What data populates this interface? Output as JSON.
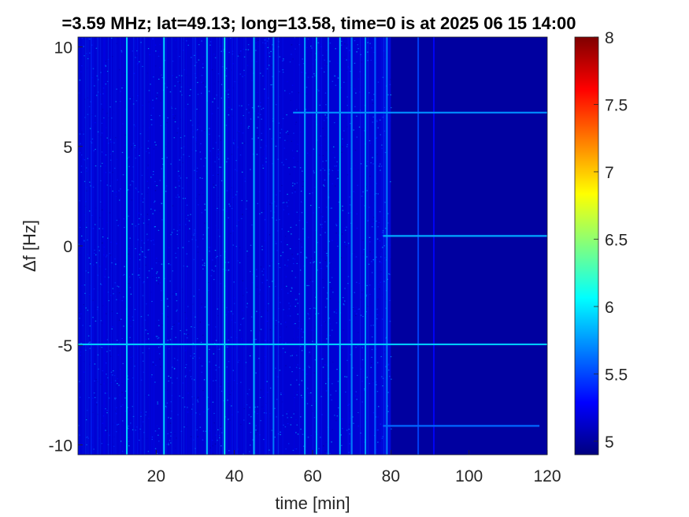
{
  "chart_data": {
    "type": "heatmap",
    "title": "=3.59 MHz;  lat=49.13; long=13.58, time=0 is at 2025 06 15 14:00",
    "xlabel": "time [min]",
    "ylabel": "Δf [Hz]",
    "xlim": [
      0,
      120
    ],
    "ylim": [
      -10.5,
      10.5
    ],
    "x_ticks": [
      20,
      40,
      60,
      80,
      100,
      120
    ],
    "x_tick_labels": [
      "20",
      "40",
      "60",
      "80",
      "100",
      "120"
    ],
    "y_ticks": [
      10,
      5,
      0,
      -5,
      -10
    ],
    "y_tick_labels": [
      "10",
      "5",
      "0",
      "-5",
      "-10"
    ],
    "colorbar": {
      "colormap": "jet",
      "clim": [
        4.9,
        8
      ],
      "ticks": [
        8,
        7.5,
        7,
        6.5,
        6,
        5.5,
        5
      ],
      "tick_labels": [
        "8",
        "7.5",
        "7",
        "6.5",
        "6",
        "5.5",
        "5"
      ]
    },
    "background_level": 5.0,
    "noisy_region_x": [
      0,
      80
    ],
    "noisy_region_level": 5.3,
    "horizontal_traces": [
      {
        "df": 6.7,
        "x_start": 55,
        "x_end": 120,
        "level": 5.7
      },
      {
        "df": 0.5,
        "x_start": 78,
        "x_end": 120,
        "level": 5.8
      },
      {
        "df": -4.95,
        "x_start": 0,
        "x_end": 120,
        "level": 5.9
      },
      {
        "df": -9.05,
        "x_start": 78,
        "x_end": 118,
        "level": 5.6
      }
    ],
    "vertical_streaks": [
      {
        "x": 12.5,
        "level": 6.0
      },
      {
        "x": 22.0,
        "level": 6.0
      },
      {
        "x": 33.0,
        "level": 5.9
      },
      {
        "x": 37.5,
        "level": 6.1
      },
      {
        "x": 45.0,
        "level": 5.9
      },
      {
        "x": 50.0,
        "level": 5.7
      },
      {
        "x": 58.0,
        "level": 5.8
      },
      {
        "x": 61.0,
        "level": 5.9
      },
      {
        "x": 64.0,
        "level": 5.7
      },
      {
        "x": 67.0,
        "level": 5.9
      },
      {
        "x": 70.0,
        "level": 5.7
      },
      {
        "x": 73.5,
        "level": 5.8
      },
      {
        "x": 76.0,
        "level": 5.6
      },
      {
        "x": 79.0,
        "level": 5.7
      },
      {
        "x": 87.0,
        "level": 5.5
      },
      {
        "x": 91.0,
        "level": 5.3
      }
    ]
  },
  "colors": {
    "figure_background": "#ffffff",
    "axis_color": "#262626",
    "title_color": "#000000",
    "colormap_low": "#00007f",
    "colormap_high": "#7f0000"
  }
}
